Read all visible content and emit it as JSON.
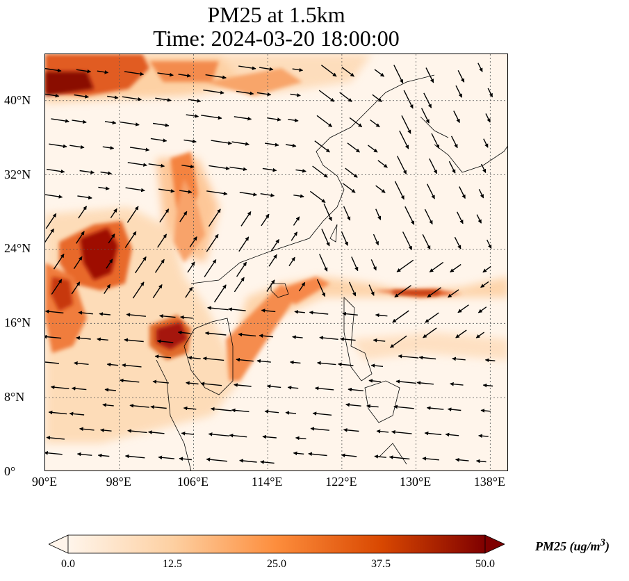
{
  "title_line1": "PM25 at 1.5km",
  "title_line2": "Time: 2024-03-20 18:00:00",
  "map": {
    "lon_range": [
      90,
      140
    ],
    "lat_range": [
      0,
      45
    ],
    "lat_ticks": [
      {
        "value": 0,
        "label": "0°"
      },
      {
        "value": 8,
        "label": "8°N"
      },
      {
        "value": 16,
        "label": "16°N"
      },
      {
        "value": 24,
        "label": "24°N"
      },
      {
        "value": 32,
        "label": "32°N"
      },
      {
        "value": 40,
        "label": "40°N"
      }
    ],
    "lon_ticks": [
      {
        "value": 90,
        "label": "90°E"
      },
      {
        "value": 98,
        "label": "98°E"
      },
      {
        "value": 106,
        "label": "106°E"
      },
      {
        "value": 114,
        "label": "114°E"
      },
      {
        "value": 122,
        "label": "122°E"
      },
      {
        "value": 130,
        "label": "130°E"
      },
      {
        "value": 138,
        "label": "138°E"
      }
    ],
    "gridlines": true
  },
  "colorbar": {
    "label": "PM25 (ug/m",
    "label_sup": "3",
    "label_close": ")",
    "min": 0,
    "max": 50,
    "ticks": [
      "0.0",
      "12.5",
      "25.0",
      "37.5",
      "50.0"
    ],
    "colors": [
      "#fff5eb",
      "#fdd0a2",
      "#fd8d3c",
      "#d94801",
      "#7f0000"
    ],
    "extend": "both"
  },
  "vector_field": "wind"
}
